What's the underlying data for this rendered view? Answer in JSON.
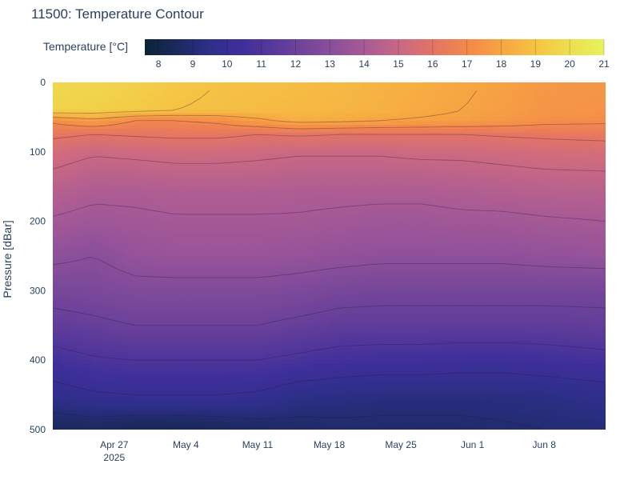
{
  "chart_data": {
    "type": "heatmap",
    "title": "11500: Temperature Contour",
    "ylabel": "Pressure [dBar]",
    "xlabel": "",
    "colorbar": {
      "title": "Temperature [°C]",
      "range": [
        7.6,
        21
      ],
      "ticks": [
        8,
        9,
        10,
        11,
        12,
        13,
        14,
        15,
        16,
        17,
        18,
        19,
        20,
        21
      ],
      "colors": [
        "#0d0887",
        "#3d049b",
        "#6300a7",
        "#8606a6",
        "#a82296",
        "#c33e82",
        "#da5b69",
        "#ed7953",
        "#fa9e3b",
        "#fdc926",
        "#f0f921"
      ]
    },
    "colorscale": [
      "#0b2437",
      "#1b2a5f",
      "#2e2f8a",
      "#3f2f9b",
      "#5a3a9a",
      "#77479a",
      "#93529a",
      "#b15e92",
      "#cf6b7e",
      "#e8775f",
      "#f48c48",
      "#f7a842",
      "#f5c544",
      "#eddf52",
      "#e7f25c"
    ],
    "x_ticks": [
      {
        "label": "Apr 27",
        "sublabel": "2025",
        "date": "2025-04-27"
      },
      {
        "label": "May 4",
        "date": "2025-05-04"
      },
      {
        "label": "May 11",
        "date": "2025-05-11"
      },
      {
        "label": "May 18",
        "date": "2025-05-18"
      },
      {
        "label": "May 25",
        "date": "2025-05-25"
      },
      {
        "label": "Jun 1",
        "date": "2025-06-01"
      },
      {
        "label": "Jun 8",
        "date": "2025-06-08"
      }
    ],
    "x_range": [
      "2025-04-21",
      "2025-06-14"
    ],
    "y_ticks": [
      0,
      100,
      200,
      300,
      400,
      500
    ],
    "ylim": [
      500,
      0
    ],
    "x_dates": [
      "2025-04-21",
      "2025-04-25",
      "2025-04-29",
      "2025-05-03",
      "2025-05-07",
      "2025-05-11",
      "2025-05-15",
      "2025-05-19",
      "2025-05-23",
      "2025-05-27",
      "2025-05-31",
      "2025-06-04",
      "2025-06-08",
      "2025-06-14"
    ],
    "depths": [
      0,
      40,
      55,
      75,
      100,
      150,
      200,
      250,
      300,
      350,
      400,
      450,
      500
    ],
    "temperature": [
      [
        19.8,
        19.7,
        19.5,
        19.2,
        19.0,
        18.9,
        18.8,
        18.7,
        18.5,
        18.3,
        18.1,
        17.9,
        17.6,
        17.5
      ],
      [
        19.6,
        19.5,
        19.3,
        19.0,
        18.9,
        18.8,
        18.7,
        18.6,
        18.4,
        18.2,
        18.0,
        17.8,
        17.5,
        17.4
      ],
      [
        17.2,
        17.8,
        17.0,
        17.0,
        17.2,
        17.8,
        18.3,
        18.2,
        18.0,
        17.9,
        17.8,
        17.6,
        17.3,
        17.2
      ],
      [
        16.2,
        16.0,
        16.1,
        16.2,
        16.2,
        16.0,
        16.1,
        16.0,
        16.0,
        16.0,
        16.0,
        16.1,
        16.2,
        16.3
      ],
      [
        15.4,
        15.1,
        15.2,
        15.3,
        15.3,
        15.2,
        15.1,
        15.1,
        15.1,
        15.2,
        15.2,
        15.3,
        15.4,
        15.5
      ],
      [
        14.6,
        14.3,
        14.3,
        14.4,
        14.4,
        14.4,
        14.3,
        14.3,
        14.3,
        14.3,
        14.4,
        14.5,
        14.6,
        14.6
      ],
      [
        13.9,
        13.7,
        13.8,
        13.9,
        13.9,
        13.9,
        13.9,
        13.8,
        13.7,
        13.7,
        13.8,
        13.8,
        13.9,
        14.0
      ],
      [
        13.2,
        13.0,
        13.4,
        13.5,
        13.5,
        13.5,
        13.4,
        13.3,
        13.2,
        13.2,
        13.2,
        13.2,
        13.3,
        13.4
      ],
      [
        12.4,
        12.5,
        12.7,
        12.7,
        12.7,
        12.7,
        12.6,
        12.4,
        12.3,
        12.3,
        12.3,
        12.3,
        12.3,
        12.3
      ],
      [
        11.6,
        11.8,
        12.0,
        12.0,
        12.0,
        12.0,
        11.8,
        11.6,
        11.6,
        11.6,
        11.6,
        11.6,
        11.6,
        11.7
      ],
      [
        10.6,
        10.9,
        11.0,
        11.0,
        11.0,
        11.0,
        10.8,
        10.6,
        10.5,
        10.5,
        10.4,
        10.4,
        10.5,
        10.7
      ],
      [
        9.6,
        9.9,
        10.0,
        10.0,
        10.0,
        9.9,
        9.5,
        9.4,
        9.3,
        9.3,
        9.3,
        9.3,
        9.4,
        9.6
      ],
      [
        8.4,
        8.5,
        8.3,
        8.3,
        8.4,
        8.6,
        8.7,
        8.8,
        8.8,
        8.8,
        8.8,
        8.9,
        9.0,
        9.1
      ]
    ]
  }
}
